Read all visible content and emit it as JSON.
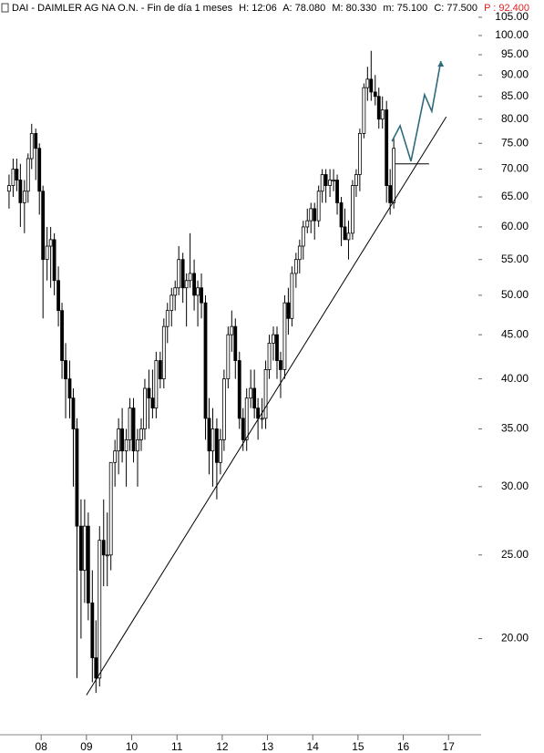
{
  "chart_data": {
    "type": "candlestick",
    "header": {
      "symbol": "DAI - DAIMLER AG NA O.N. - Fin de día 1 meses",
      "time": "H: 12:06",
      "open": "A: 78.080",
      "high": "M: 80.330",
      "low": "m: 75.100",
      "close": "C: 77.500",
      "target": "P : 92.400"
    },
    "log_scale": true,
    "up_color": "#ffffff",
    "down_color": "#000000",
    "x": [
      7.29,
      7.38,
      7.46,
      7.54,
      7.63,
      7.71,
      7.79,
      7.88,
      7.96,
      8.04,
      8.13,
      8.21,
      8.29,
      8.38,
      8.46,
      8.54,
      8.63,
      8.71,
      8.79,
      8.88,
      8.96,
      9.04,
      9.13,
      9.21,
      9.29,
      9.38,
      9.46,
      9.54,
      9.63,
      9.71,
      9.79,
      9.88,
      9.96,
      10.04,
      10.13,
      10.21,
      10.29,
      10.38,
      10.46,
      10.54,
      10.63,
      10.71,
      10.79,
      10.88,
      10.96,
      11.04,
      11.13,
      11.21,
      11.29,
      11.38,
      11.46,
      11.54,
      11.63,
      11.71,
      11.79,
      11.88,
      11.96,
      12.04,
      12.13,
      12.21,
      12.29,
      12.38,
      12.46,
      12.54,
      12.63,
      12.71,
      12.79,
      12.88,
      12.96,
      13.04,
      13.13,
      13.21,
      13.29,
      13.38,
      13.46,
      13.54,
      13.63,
      13.71,
      13.79,
      13.88,
      13.96,
      14.04,
      14.13,
      14.21,
      14.29,
      14.38,
      14.46,
      14.54,
      14.63,
      14.71,
      14.79,
      14.88,
      14.96,
      15.04,
      15.13,
      15.21,
      15.29,
      15.38,
      15.46,
      15.54,
      15.63,
      15.71,
      15.79
    ],
    "open": [
      66,
      67,
      70,
      68,
      64,
      66,
      72,
      77,
      74,
      66,
      55,
      57,
      58,
      52,
      48,
      42,
      40,
      38,
      35,
      27,
      24,
      27,
      22,
      19,
      18,
      26,
      25,
      25,
      32,
      33,
      35,
      33,
      34,
      37,
      33,
      34,
      35,
      39,
      38,
      37,
      42,
      40,
      46,
      48,
      50,
      51,
      55,
      51,
      52,
      53,
      50,
      51,
      49,
      36,
      33,
      35,
      32,
      34,
      40,
      45,
      46,
      42,
      36,
      34,
      38,
      39,
      37,
      36,
      36,
      41,
      44,
      45,
      42,
      41,
      49,
      47,
      53,
      55,
      57,
      60,
      61,
      63,
      61,
      66,
      69,
      67,
      68,
      68,
      64,
      60,
      58,
      59,
      67,
      69,
      77,
      87,
      89,
      86,
      85,
      80,
      82,
      67,
      64
    ],
    "high": [
      69,
      72,
      72,
      71,
      68,
      73,
      79,
      78,
      75,
      67,
      60,
      60,
      59,
      54,
      49,
      44,
      42,
      39,
      36,
      29,
      29,
      28,
      24,
      21,
      27,
      29,
      28,
      32,
      34,
      36,
      37,
      35,
      38,
      38,
      35,
      36,
      40,
      41,
      41,
      43,
      43,
      47,
      49,
      51,
      52,
      57,
      56,
      53,
      59,
      55,
      52,
      53,
      50,
      38,
      37,
      36,
      35,
      41,
      46,
      48,
      47,
      43,
      37,
      39,
      41,
      41,
      38,
      38,
      42,
      45,
      46,
      46,
      43,
      50,
      51,
      54,
      56,
      58,
      61,
      63,
      64,
      64,
      67,
      70,
      70,
      70,
      70,
      69,
      65,
      63,
      61,
      68,
      70,
      78,
      88,
      92,
      96,
      90,
      87,
      85,
      84,
      70,
      76
    ],
    "low": [
      63,
      65,
      66,
      60,
      59,
      64,
      70,
      68,
      62,
      47,
      52,
      51,
      50,
      46,
      40,
      36,
      36,
      30,
      18,
      20,
      22,
      21,
      17.8,
      17.3,
      17.6,
      23,
      23,
      24,
      30,
      31,
      32,
      30,
      33,
      32,
      30,
      33,
      34,
      35,
      36,
      36,
      39,
      39,
      44,
      46,
      48,
      50,
      49,
      46,
      51,
      48,
      46,
      47,
      34,
      31,
      30,
      29,
      31,
      33,
      39,
      43,
      40,
      35,
      33,
      33,
      37,
      36,
      34,
      35,
      35,
      40,
      42,
      40,
      38,
      40,
      45,
      46,
      51,
      53,
      55,
      59,
      59,
      58,
      60,
      64,
      64,
      65,
      66,
      62,
      57,
      58,
      55,
      58,
      65,
      66,
      76,
      84,
      84,
      83,
      78,
      78,
      64,
      62,
      63
    ],
    "close": [
      67,
      70,
      68,
      64,
      66,
      72,
      77,
      74,
      66,
      55,
      57,
      58,
      52,
      48,
      42,
      40,
      38,
      35,
      27,
      24,
      27,
      22,
      19,
      18,
      26,
      25,
      25,
      32,
      33,
      35,
      33,
      34,
      37,
      33,
      34,
      35,
      39,
      38,
      37,
      42,
      40,
      46,
      48,
      50,
      51,
      55,
      51,
      52,
      53,
      50,
      51,
      49,
      36,
      33,
      35,
      32,
      34,
      40,
      45,
      46,
      42,
      36,
      34,
      38,
      39,
      37,
      36,
      36,
      41,
      44,
      45,
      42,
      41,
      49,
      47,
      53,
      55,
      57,
      60,
      61,
      63,
      61,
      66,
      69,
      67,
      68,
      68,
      64,
      60,
      58,
      59,
      67,
      69,
      77,
      87,
      89,
      86,
      85,
      80,
      82,
      67,
      64,
      74
    ],
    "trendline": {
      "x": [
        9.0,
        16.95
      ],
      "y": [
        17.2,
        80.5
      ]
    },
    "support": {
      "x": [
        15.82,
        16.57
      ],
      "y": [
        71,
        71
      ]
    },
    "projection": {
      "color": "#2e6b7a",
      "x": [
        15.75,
        15.93,
        16.17,
        16.47,
        16.63,
        16.83
      ],
      "y": [
        75.4,
        78.6,
        71.5,
        85.4,
        81.7,
        93.4
      ]
    },
    "xlim": [
      7.09,
      17.72
    ],
    "xticks": [
      {
        "value": 8,
        "label": "08"
      },
      {
        "value": 9,
        "label": "09"
      },
      10,
      11,
      12,
      13,
      14,
      15,
      16,
      17
    ],
    "ylim": [
      15.7,
      107.3
    ],
    "yticks": [
      {
        "value": 20,
        "label": "20.00"
      },
      {
        "value": 25,
        "label": "25.00"
      },
      {
        "value": 30,
        "label": "30.00"
      },
      {
        "value": 35,
        "label": "35.00"
      },
      {
        "value": 40,
        "label": "40.00"
      },
      {
        "value": 45,
        "label": "45.00"
      },
      {
        "value": 50,
        "label": "50.00"
      },
      {
        "value": 55,
        "label": "55.00"
      },
      {
        "value": 60,
        "label": "60.00"
      },
      {
        "value": 65,
        "label": "65.00"
      },
      {
        "value": 70,
        "label": "70.00"
      },
      {
        "value": 75,
        "label": "75.00"
      },
      {
        "value": 80,
        "label": "80.00"
      },
      {
        "value": 85,
        "label": "85.00"
      },
      {
        "value": 90,
        "label": "90.00"
      },
      {
        "value": 95,
        "label": "95.00"
      },
      {
        "value": 100,
        "label": "100.00"
      },
      {
        "value": 105,
        "label": "105.00"
      }
    ]
  }
}
